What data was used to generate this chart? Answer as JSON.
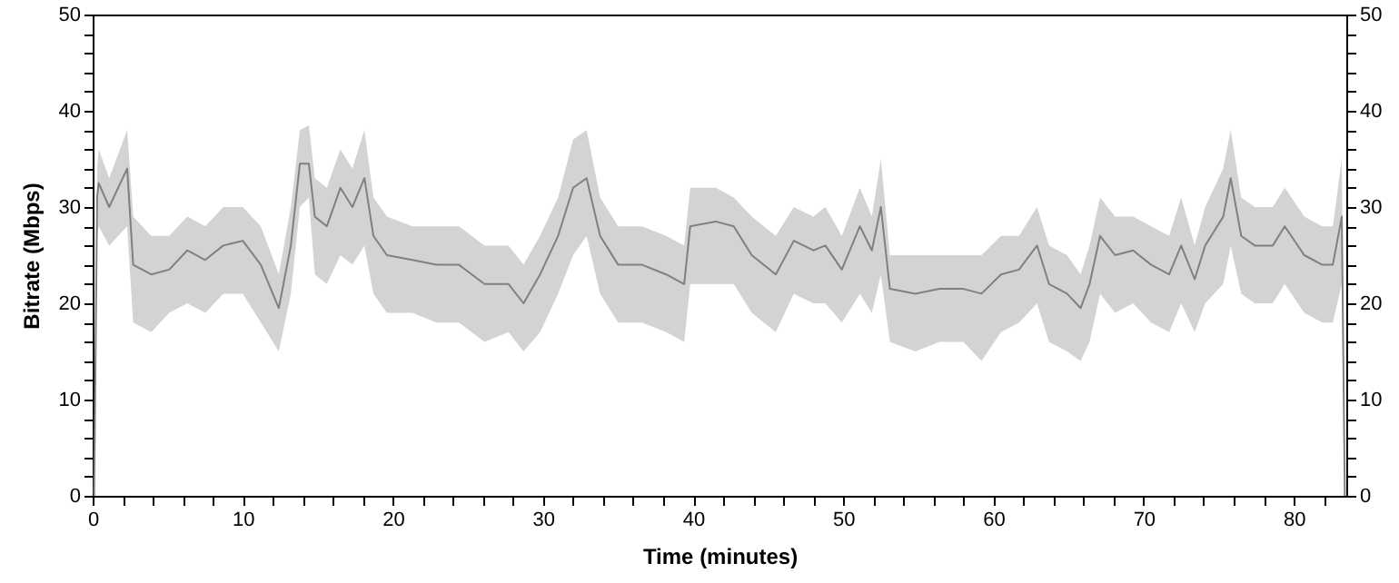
{
  "chart_data": {
    "type": "line",
    "xlabel": "Time (minutes)",
    "ylabel": "Bitrate (Mbps)",
    "x": [
      0.1,
      0.3,
      0.4,
      1.1,
      2.3,
      2.7,
      3.9,
      5.1,
      6.3,
      7.5,
      8.7,
      10,
      11.2,
      12.4,
      13.2,
      13.8,
      14.4,
      14.8,
      15.6,
      16.5,
      17.3,
      18.1,
      18.7,
      19.6,
      21.3,
      22.9,
      24.4,
      26.1,
      27.7,
      28.7,
      29.8,
      31,
      32,
      32.9,
      33.8,
      35,
      36.6,
      38.2,
      39.4,
      39.8,
      41.5,
      42.7,
      43.9,
      45.5,
      46.7,
      48,
      48.8,
      49.9,
      51.1,
      51.9,
      52.5,
      53.1,
      54.8,
      56.4,
      58,
      59.2,
      60.5,
      61.7,
      62.9,
      63.7,
      64.9,
      65.8,
      66.4,
      67.1,
      68.1,
      69.3,
      70.5,
      71.7,
      72.5,
      73.4,
      74.1,
      75.3,
      75.8,
      76.5,
      77.4,
      78.6,
      79.4,
      80.7,
      81.9,
      82.6,
      83.2,
      83.4
    ],
    "series": [
      {
        "color": "#808080",
        "values": [
          0,
          31,
          32.5,
          30,
          34,
          24,
          23,
          23.5,
          25.5,
          24.5,
          26,
          26.5,
          24,
          19.5,
          26,
          34.5,
          34.5,
          29,
          28,
          32,
          30,
          33,
          27,
          25,
          24.5,
          24,
          24,
          22,
          22,
          20,
          23,
          27,
          32,
          33,
          27,
          24,
          24,
          23,
          22,
          28,
          28.5,
          28,
          25,
          23,
          26.5,
          25.5,
          26,
          23.5,
          28,
          25.5,
          30,
          21.5,
          21,
          21.5,
          21.5,
          21,
          23,
          23.5,
          26,
          22,
          21,
          19.5,
          22,
          27,
          25,
          25.5,
          24,
          23,
          26,
          22.5,
          26,
          29,
          33,
          27,
          26,
          26,
          28,
          25,
          24,
          24,
          29,
          0
        ],
        "lower": [
          0,
          27,
          28,
          26,
          28,
          18,
          17,
          19,
          20,
          19,
          21,
          21,
          18,
          15,
          21,
          30,
          31,
          23,
          22,
          25,
          24,
          26,
          21,
          19,
          19,
          18,
          18,
          16,
          17,
          15,
          17,
          21,
          25,
          27,
          21,
          18,
          18,
          17,
          16,
          22,
          22,
          22,
          19,
          17,
          21,
          20,
          20,
          18,
          21,
          19,
          23,
          16,
          15,
          16,
          16,
          14,
          17,
          18,
          20,
          16,
          15,
          14,
          16,
          21,
          19,
          20,
          18,
          17,
          20,
          17,
          20,
          22,
          26,
          21,
          20,
          20,
          22,
          19,
          18,
          18,
          22,
          0
        ],
        "upper": [
          0,
          34,
          36,
          33,
          38,
          29,
          27,
          27,
          29,
          28,
          30,
          30,
          28,
          23,
          30,
          38,
          38.5,
          33,
          32,
          36,
          34,
          38,
          31,
          29,
          28,
          28,
          28,
          26,
          26,
          24,
          27,
          31,
          37,
          38,
          31,
          28,
          28,
          27,
          26,
          32,
          32,
          31,
          29,
          27,
          30,
          29,
          30,
          27,
          32,
          29,
          35,
          25,
          25,
          25,
          25,
          25,
          27,
          27,
          30,
          26,
          25,
          23,
          26,
          31,
          29,
          29,
          28,
          27,
          31,
          26,
          30,
          34,
          38,
          31,
          30,
          30,
          32,
          29,
          28,
          28,
          35,
          1
        ]
      }
    ],
    "xlim": [
      0,
      83.5
    ],
    "xticks": [
      0,
      {
        "value": 2,
        "label": null
      },
      {
        "value": 4,
        "label": null
      },
      {
        "value": 6,
        "label": null
      },
      {
        "value": 8,
        "label": null
      },
      10,
      {
        "value": 12,
        "label": null
      },
      {
        "value": 14,
        "label": null
      },
      {
        "value": 16,
        "label": null
      },
      {
        "value": 18,
        "label": null
      },
      20,
      {
        "value": 22,
        "label": null
      },
      {
        "value": 24,
        "label": null
      },
      {
        "value": 26,
        "label": null
      },
      {
        "value": 28,
        "label": null
      },
      30,
      {
        "value": 32,
        "label": null
      },
      {
        "value": 34,
        "label": null
      },
      {
        "value": 36,
        "label": null
      },
      {
        "value": 38,
        "label": null
      },
      40,
      {
        "value": 42,
        "label": null
      },
      {
        "value": 44,
        "label": null
      },
      {
        "value": 46,
        "label": null
      },
      {
        "value": 48,
        "label": null
      },
      50,
      {
        "value": 52,
        "label": null
      },
      {
        "value": 54,
        "label": null
      },
      {
        "value": 56,
        "label": null
      },
      {
        "value": 58,
        "label": null
      },
      60,
      {
        "value": 62,
        "label": null
      },
      {
        "value": 64,
        "label": null
      },
      {
        "value": 66,
        "label": null
      },
      {
        "value": 68,
        "label": null
      },
      70,
      {
        "value": 72,
        "label": null
      },
      {
        "value": 74,
        "label": null
      },
      {
        "value": 76,
        "label": null
      },
      {
        "value": 78,
        "label": null
      },
      80,
      {
        "value": 82,
        "label": null
      }
    ],
    "ylim": [
      0,
      50
    ],
    "yticks": [
      0,
      {
        "value": 2,
        "label": null
      },
      {
        "value": 4,
        "label": null
      },
      {
        "value": 6,
        "label": null
      },
      {
        "value": 8,
        "label": null
      },
      10,
      {
        "value": 12,
        "label": null
      },
      {
        "value": 14,
        "label": null
      },
      {
        "value": 16,
        "label": null
      },
      {
        "value": 18,
        "label": null
      },
      20,
      {
        "value": 22,
        "label": null
      },
      {
        "value": 24,
        "label": null
      },
      {
        "value": 26,
        "label": null
      },
      {
        "value": 28,
        "label": null
      },
      30,
      {
        "value": 32,
        "label": null
      },
      {
        "value": 34,
        "label": null
      },
      {
        "value": 36,
        "label": null
      },
      {
        "value": 38,
        "label": null
      },
      40,
      {
        "value": 42,
        "label": null
      },
      {
        "value": 44,
        "label": null
      },
      {
        "value": 46,
        "label": null
      },
      {
        "value": 48,
        "label": null
      },
      50
    ],
    "y2lim": [
      0,
      50
    ],
    "y2ticks": [
      0,
      {
        "value": 2,
        "label": null
      },
      {
        "value": 4,
        "label": null
      },
      {
        "value": 6,
        "label": null
      },
      {
        "value": 8,
        "label": null
      },
      10,
      {
        "value": 12,
        "label": null
      },
      {
        "value": 14,
        "label": null
      },
      {
        "value": 16,
        "label": null
      },
      {
        "value": 18,
        "label": null
      },
      20,
      {
        "value": 22,
        "label": null
      },
      {
        "value": 24,
        "label": null
      },
      {
        "value": 26,
        "label": null
      },
      {
        "value": 28,
        "label": null
      },
      30,
      {
        "value": 32,
        "label": null
      },
      {
        "value": 34,
        "label": null
      },
      {
        "value": 36,
        "label": null
      },
      {
        "value": 38,
        "label": null
      },
      40,
      {
        "value": 42,
        "label": null
      },
      {
        "value": 44,
        "label": null
      },
      {
        "value": 46,
        "label": null
      },
      {
        "value": 48,
        "label": null
      },
      50
    ],
    "grid": false,
    "marker": "none",
    "line_style": "solid"
  }
}
